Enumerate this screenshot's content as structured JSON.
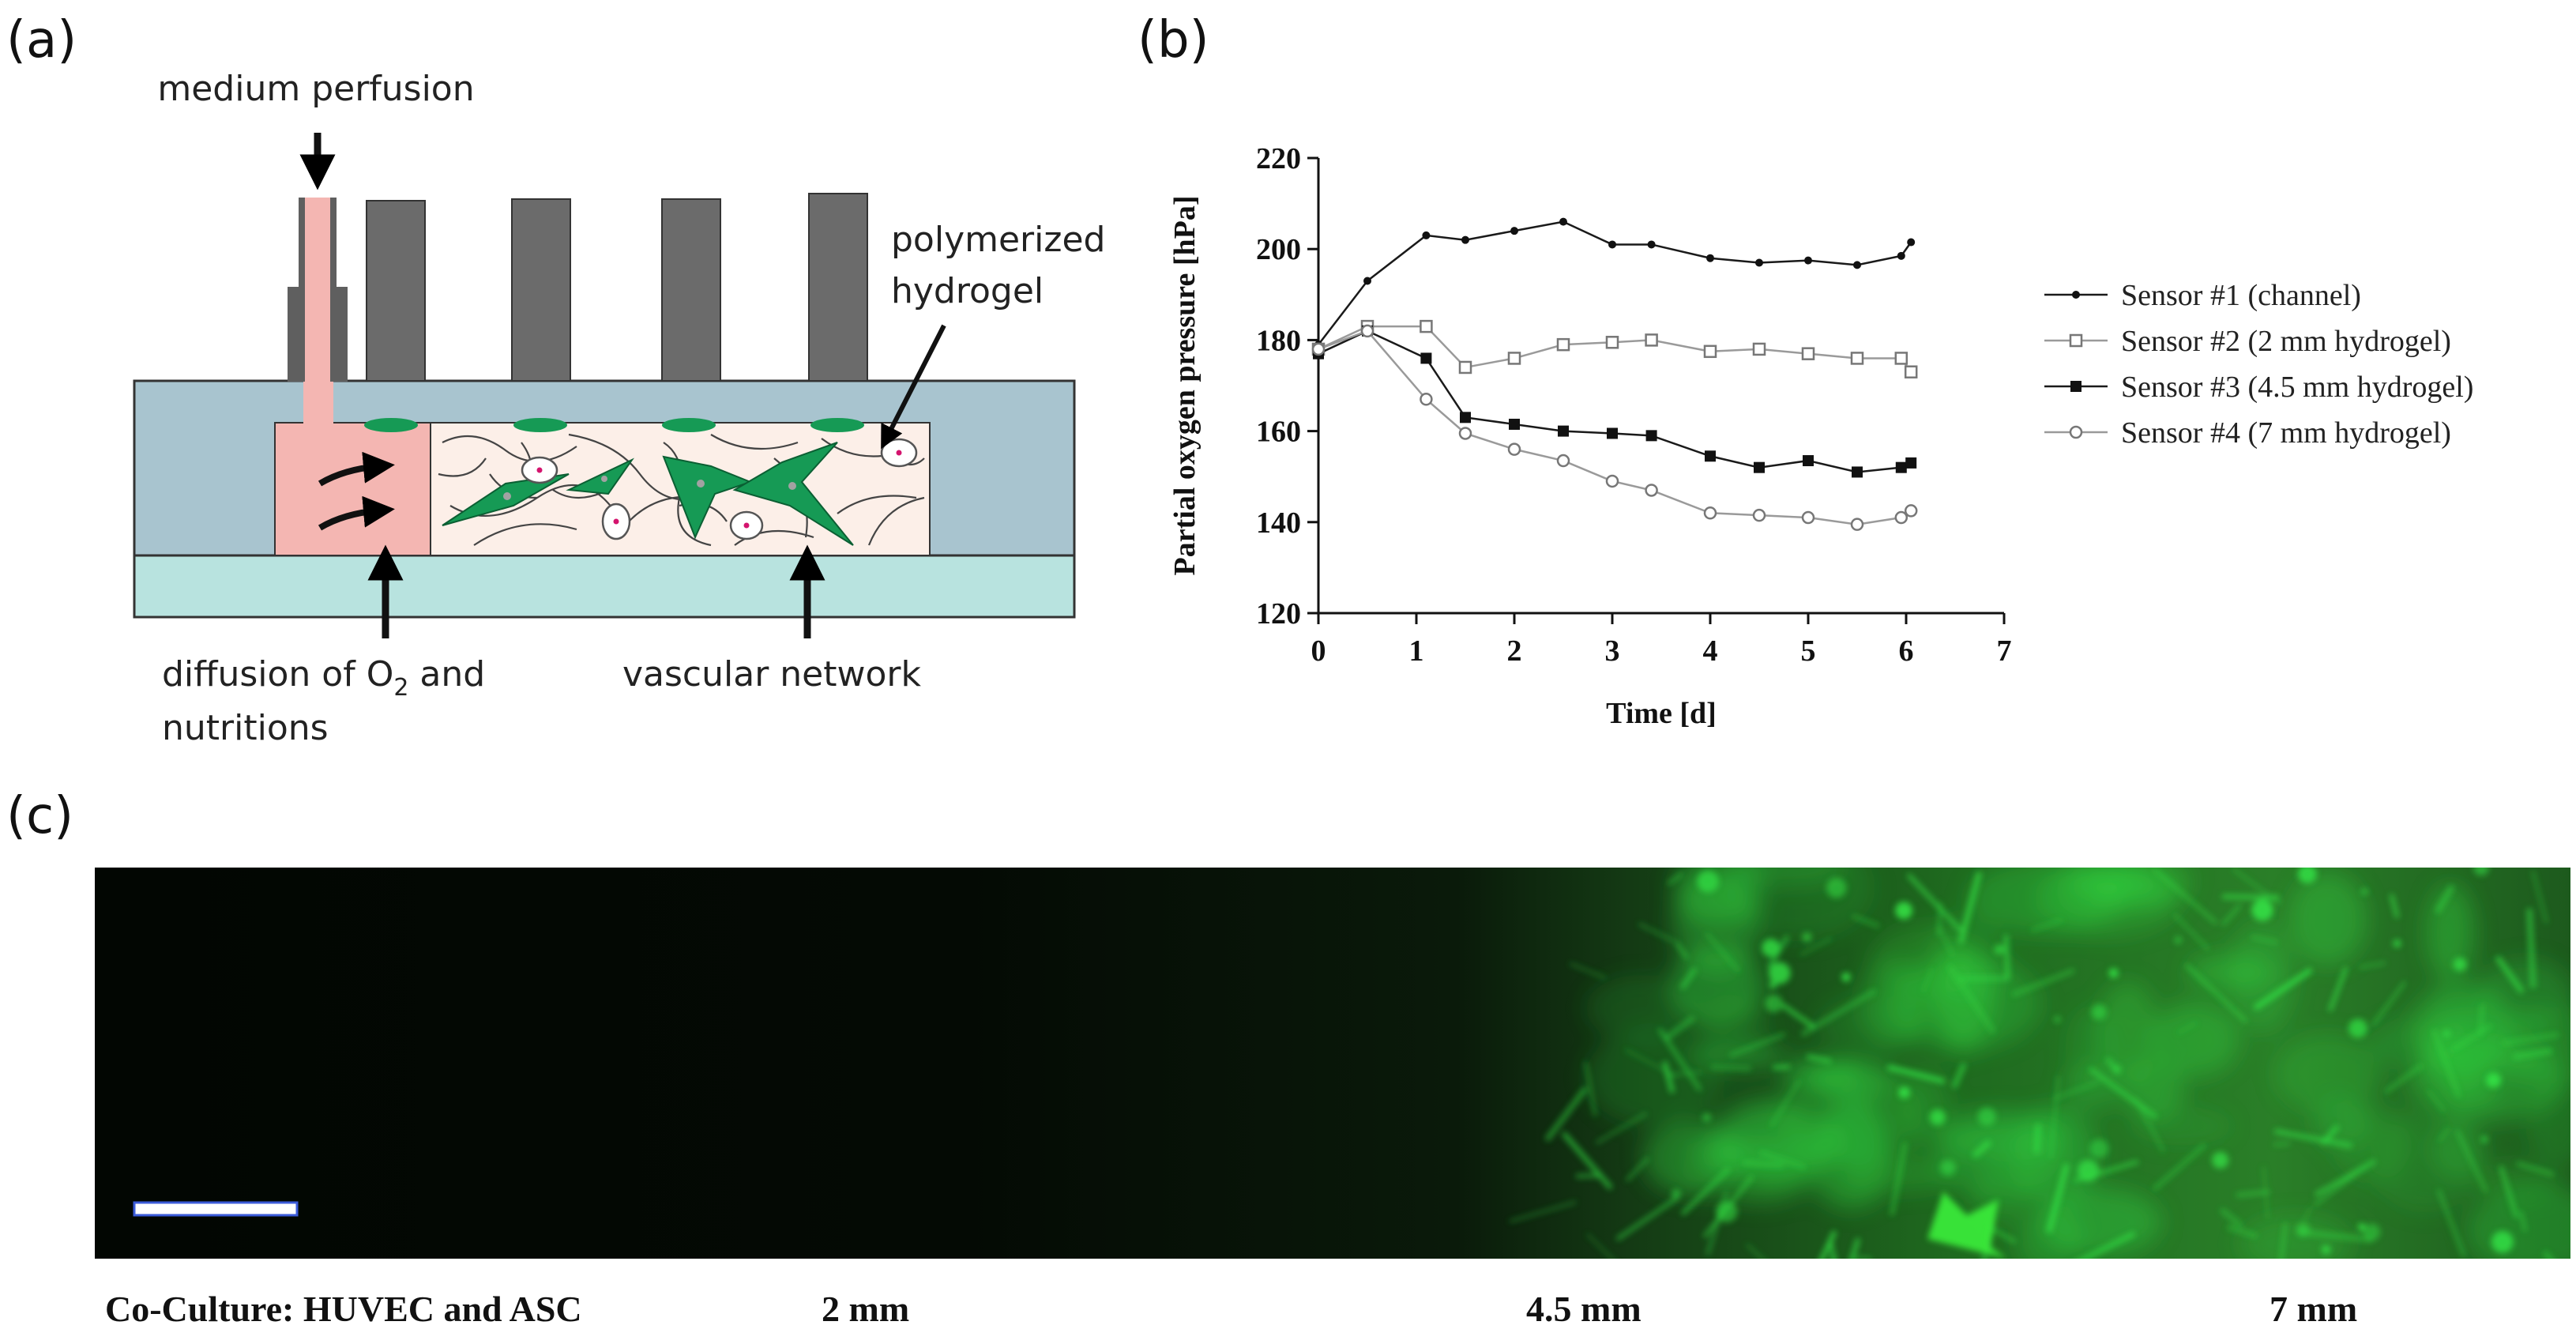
{
  "panels": {
    "a": "(a)",
    "b": "(b)",
    "c": "(c)"
  },
  "schematic": {
    "medium_perfusion": "medium perfusion",
    "polymerized_hydrogel_line1": "polymerized",
    "polymerized_hydrogel_line2": "hydrogel",
    "diffusion_line1_prefix": "diffusion of O",
    "diffusion_line1_sub": "2",
    "diffusion_line1_suffix": " and",
    "diffusion_line2": "nutritions",
    "vascular_network": "vascular network",
    "colors": {
      "pillar": "#6b6b6b",
      "chip_body": "#a8c4cf",
      "base_layer": "#b8e3df",
      "perfusion_channel": "#f4b6b2",
      "hydrogel": "#fcefe8",
      "cell": "#169a55",
      "nucleus": "#d4146e"
    }
  },
  "chart_data": {
    "type": "line",
    "xlabel": "Time [d]",
    "ylabel": "Partial oxygen pressure [hPa]",
    "xlim": [
      0,
      7
    ],
    "ylim": [
      120,
      220
    ],
    "xticks": [
      "0",
      "1",
      "2",
      "3",
      "4",
      "5",
      "6",
      "7"
    ],
    "yticks": [
      "120",
      "140",
      "160",
      "180",
      "200",
      "220"
    ],
    "legend_position": "right",
    "series": [
      {
        "name": "Sensor #1 (channel)",
        "marker": "filled-small",
        "x": [
          0,
          0.5,
          1.1,
          1.5,
          2.0,
          2.5,
          3.0,
          3.4,
          4.0,
          4.5,
          5.0,
          5.5,
          5.95,
          6.05
        ],
        "y": [
          179,
          193,
          203,
          202,
          204,
          206,
          201,
          201,
          198,
          197,
          197.5,
          196.5,
          198.5,
          201.5
        ]
      },
      {
        "name": "Sensor #2 (2 mm hydrogel)",
        "marker": "open-square",
        "x": [
          0,
          0.5,
          1.1,
          1.5,
          2.0,
          2.5,
          3.0,
          3.4,
          4.0,
          4.5,
          5.0,
          5.5,
          5.95,
          6.05
        ],
        "y": [
          178,
          183,
          183,
          174,
          176,
          179,
          179.5,
          180,
          177.5,
          178,
          177,
          176,
          176,
          173
        ]
      },
      {
        "name": "Sensor #3 (4.5 mm hydrogel)",
        "marker": "filled-square",
        "x": [
          0,
          0.5,
          1.1,
          1.5,
          2.0,
          2.5,
          3.0,
          3.4,
          4.0,
          4.5,
          5.0,
          5.5,
          5.95,
          6.05
        ],
        "y": [
          177,
          182,
          176,
          163,
          161.5,
          160,
          159.5,
          159,
          154.5,
          152,
          153.5,
          151,
          152,
          153
        ]
      },
      {
        "name": "Sensor #4 (7 mm hydrogel)",
        "marker": "open-circle",
        "x": [
          0,
          0.5,
          1.1,
          1.5,
          2.0,
          2.5,
          3.0,
          3.4,
          4.0,
          4.5,
          5.0,
          5.5,
          5.95,
          6.05
        ],
        "y": [
          178,
          182,
          167,
          159.5,
          156,
          153.5,
          149,
          147,
          142,
          141.5,
          141,
          139.5,
          141,
          142.5
        ]
      }
    ]
  },
  "micrograph": {
    "fluorescence_color": "#33dd44"
  },
  "captions": {
    "coculture": "Co-Culture: HUVEC and ASC",
    "d1": "2 mm",
    "d2": "4.5 mm",
    "d3": "7 mm"
  }
}
